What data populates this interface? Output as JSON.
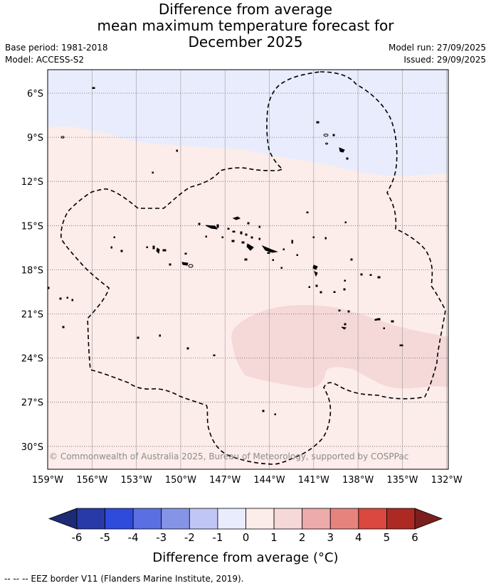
{
  "title": {
    "line1": "Difference from average",
    "line2": "mean maximum temperature forecast for",
    "line3": "December 2025"
  },
  "meta": {
    "base_period": "Base period: 1981-2018",
    "model": "Model: ACCESS-S2",
    "model_run": "Model run: 27/09/2025",
    "issued": "Issued: 29/09/2025"
  },
  "map": {
    "lat_labels": [
      "6°S",
      "9°S",
      "12°S",
      "15°S",
      "18°S",
      "21°S",
      "24°S",
      "27°S",
      "30°S"
    ],
    "lon_labels": [
      "159°W",
      "156°W",
      "153°W",
      "150°W",
      "147°W",
      "144°W",
      "141°W",
      "138°W",
      "135°W",
      "132°W"
    ],
    "copyright": "© Commonwealth of Australia 2025, Bureau of Meteorology, supported by COSPPac",
    "region_colors": {
      "band_-2_-1": "#e9ecfc",
      "band_0_1": "#fcecea",
      "band_1_2": "#f5d8d8"
    }
  },
  "colorbar": {
    "tick_labels": [
      "-6",
      "-5",
      "-4",
      "-3",
      "-2",
      "-1",
      "0",
      "1",
      "2",
      "3",
      "4",
      "5",
      "6"
    ],
    "colors": [
      "#273aa8",
      "#2f4bdc",
      "#5a70e2",
      "#8694e8",
      "#c0c6f5",
      "#e9ecfc",
      "#fcecea",
      "#f5d8d8",
      "#eeabab",
      "#e7837d",
      "#da483f",
      "#ac2a23"
    ],
    "under_color": "#1d2a75",
    "over_color": "#7b1e1e",
    "label": "Difference from average (°C)"
  },
  "footnote": "--  --  -- EEZ border V11 (Flanders Marine Institute, 2019)."
}
